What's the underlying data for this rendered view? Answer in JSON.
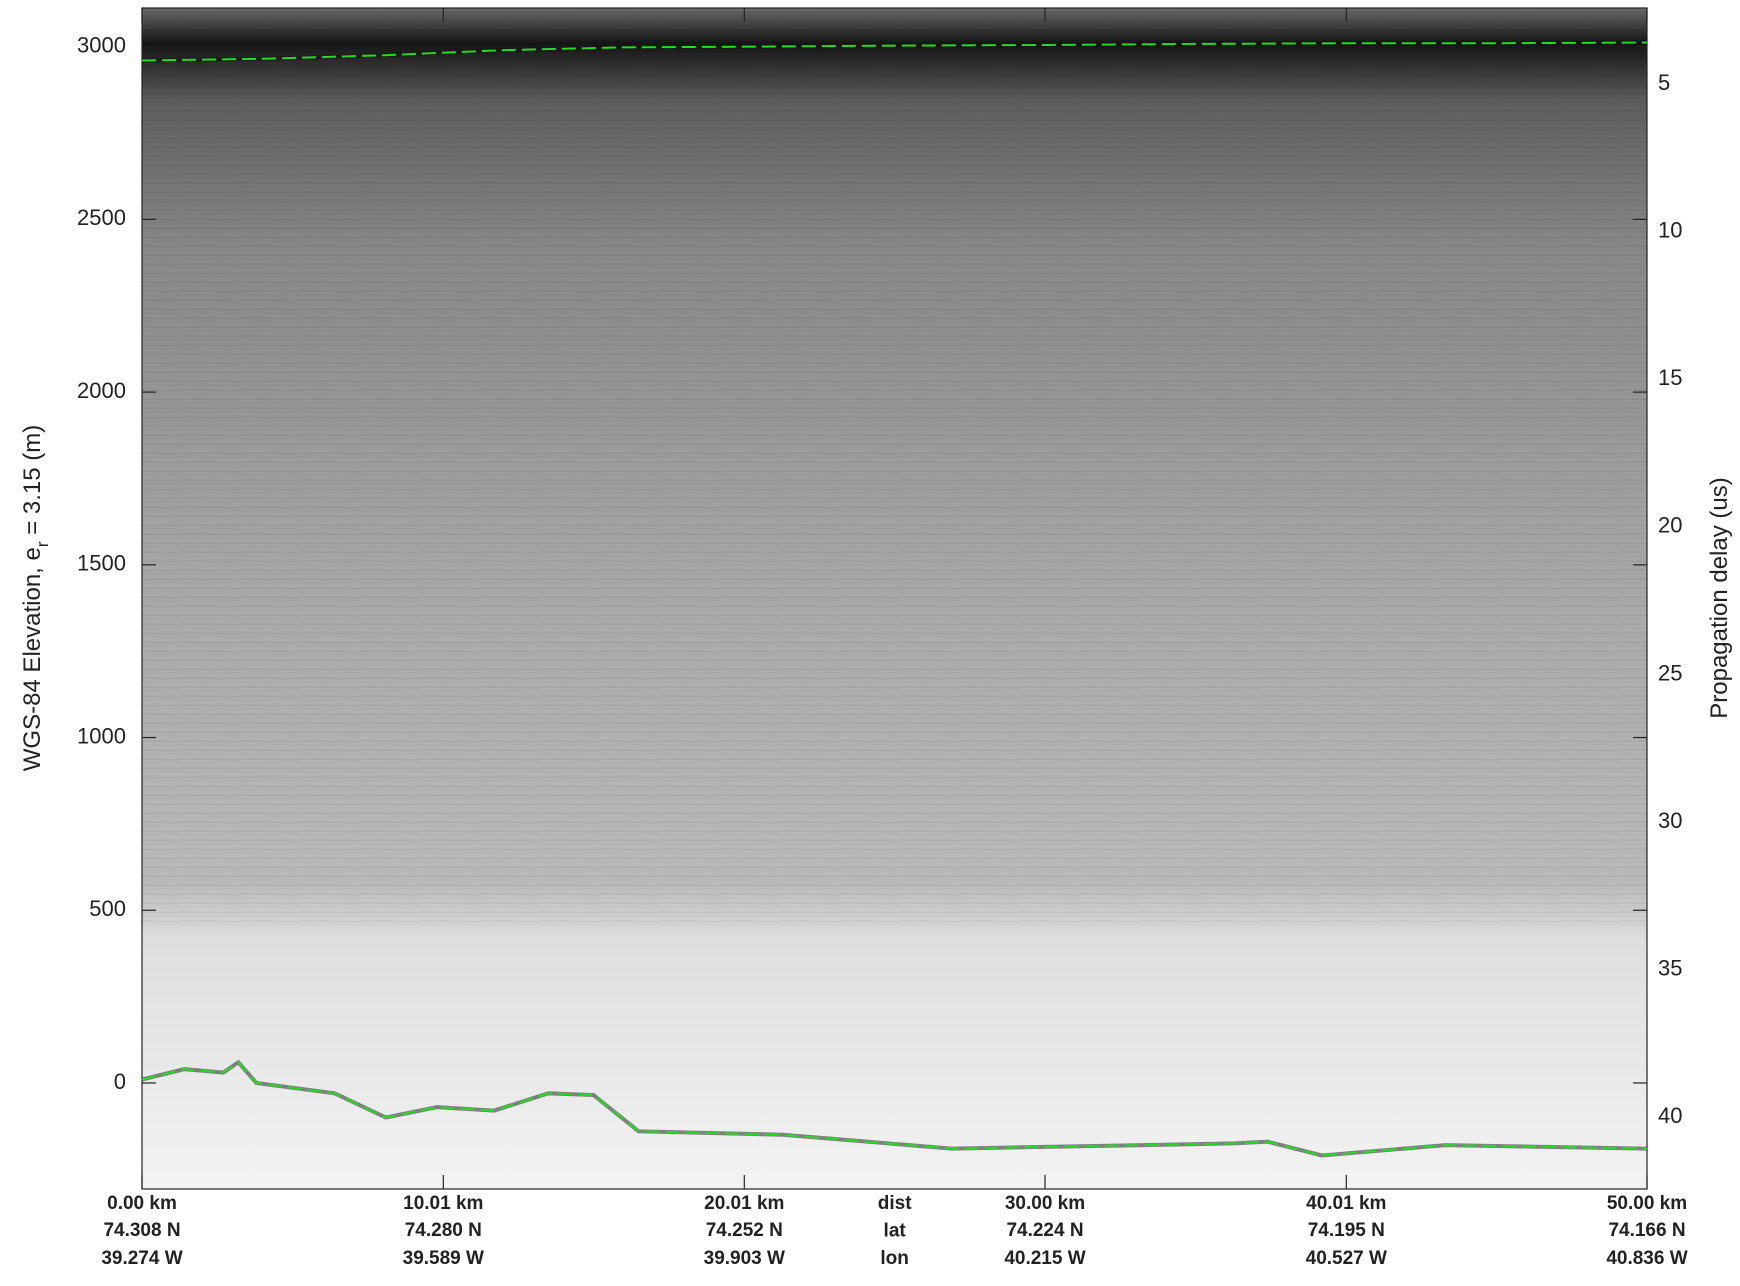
{
  "chart_data": {
    "type": "line",
    "ylabel": {
      "main": "WGS-84 Elevation, e",
      "sub": "r",
      "rest": " = 3.15 (m)"
    },
    "y2label": "Propagation delay (us)",
    "xlim": [
      0,
      50
    ],
    "xticks": [
      {
        "value": 0,
        "label": "0.00 km"
      },
      {
        "value": 10.01,
        "label": "10.01 km"
      },
      {
        "value": 20.01,
        "label": "20.01 km"
      },
      {
        "value": 30.0,
        "label": "30.00 km"
      },
      {
        "value": 40.01,
        "label": "40.01 km"
      },
      {
        "value": 50.0,
        "label": "50.00 km"
      }
    ],
    "row_names": [
      "dist",
      "lat",
      "lon"
    ],
    "lat_labels": [
      "74.308 N",
      "74.280 N",
      "74.252 N",
      "74.224 N",
      "74.195 N",
      "74.166 N"
    ],
    "lon_labels": [
      "39.274 W",
      "39.589 W",
      "39.903 W",
      "40.215 W",
      "40.527 W",
      "40.836 W"
    ],
    "ylim": [
      -307,
      3112
    ],
    "yticks": [
      0,
      500,
      1000,
      1500,
      2000,
      2500,
      3000
    ],
    "y2lim": [
      42.43,
      2.42
    ],
    "y2ticks": [
      5,
      10,
      15,
      20,
      25,
      30,
      35,
      40
    ],
    "series": [
      {
        "color": "#22dd22",
        "x": [
          0,
          4,
          8,
          12,
          16,
          20,
          25,
          30,
          35,
          40,
          45,
          50
        ],
        "values": [
          2960,
          2965,
          2975,
          2990,
          2998,
          3000,
          3003,
          3005,
          3008,
          3010,
          3010,
          3012
        ]
      },
      {
        "color": "#22dd22",
        "x": [
          0,
          1.4,
          2.7,
          3.2,
          3.8,
          6.4,
          8.1,
          9.8,
          11.7,
          13.5,
          15,
          16.5,
          21.3,
          26.9,
          36.3,
          37.4,
          39.2,
          43.3,
          50
        ],
        "values": [
          10,
          40,
          30,
          60,
          0,
          -30,
          -100,
          -70,
          -80,
          -30,
          -35,
          -140,
          -150,
          -190,
          -175,
          -170,
          -210,
          -180,
          -190
        ]
      }
    ]
  }
}
